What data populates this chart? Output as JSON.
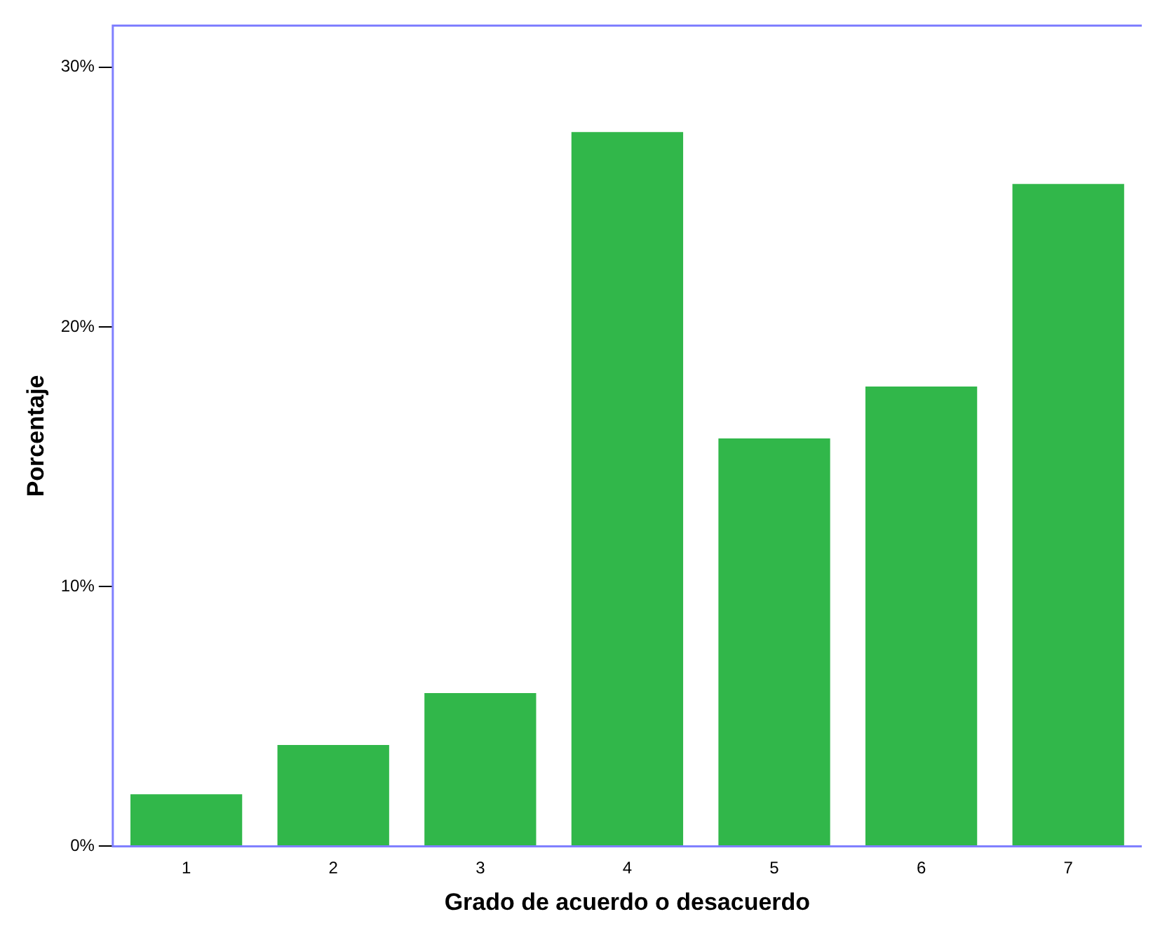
{
  "chart_data": {
    "type": "bar",
    "xlabel": "Grado de acuerdo o desacuerdo",
    "ylabel": "Porcentaje",
    "categories": [
      "1",
      "2",
      "3",
      "4",
      "5",
      "6",
      "7"
    ],
    "values": [
      2.0,
      3.9,
      5.9,
      27.5,
      15.7,
      17.7,
      25.5
    ],
    "color": "#31b74a",
    "ylim": [
      0,
      31.6
    ],
    "yticks": [
      {
        "value": 0,
        "label": "0%"
      },
      {
        "value": 10,
        "label": "10%"
      },
      {
        "value": 20,
        "label": "20%"
      },
      {
        "value": 30,
        "label": "30%"
      }
    ],
    "grid": false
  }
}
